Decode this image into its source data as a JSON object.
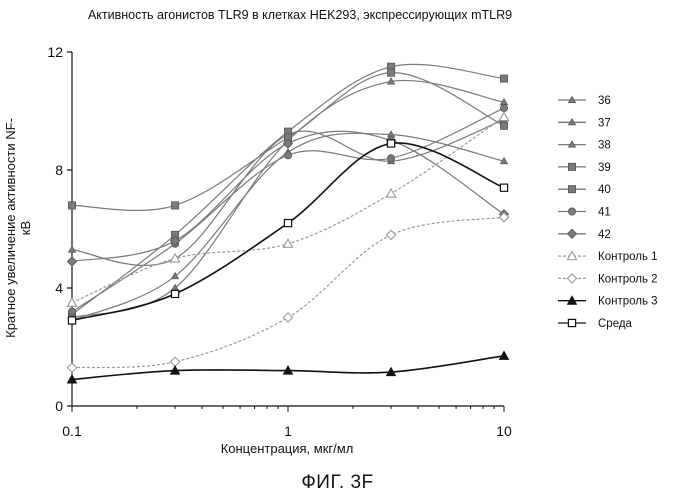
{
  "chart_data": {
    "type": "line",
    "title": "Активность агонистов TLR9 в клетках HEK293, экспрессирующих mTLR9",
    "xlabel": "Концентрация, мкг/мл",
    "ylabel": "Кратное увеличение активности NF-кВ",
    "caption": "ФИГ. 3F",
    "x_scale": "log",
    "xlim": [
      0.1,
      10
    ],
    "ylim": [
      0,
      12
    ],
    "x_ticks": [
      0.1,
      1,
      10
    ],
    "y_ticks": [
      0,
      4,
      8,
      12
    ],
    "x_tick_labels": [
      "0.1",
      "1",
      "10"
    ],
    "y_tick_labels": [
      "0",
      "4",
      "8",
      "12"
    ],
    "grid": false,
    "legend_position": "right",
    "x": [
      0.1,
      0.3,
      1,
      3,
      10
    ],
    "series": [
      {
        "name": "36",
        "values": [
          5.3,
          5.0,
          9.2,
          8.3,
          9.7
        ],
        "marker": "triangle-small",
        "color": "#7a7a7a"
      },
      {
        "name": "37",
        "values": [
          3.0,
          4.0,
          9.0,
          11.0,
          10.3
        ],
        "marker": "triangle-small",
        "color": "#7a7a7a"
      },
      {
        "name": "38",
        "values": [
          2.9,
          4.4,
          8.6,
          9.2,
          8.3
        ],
        "marker": "triangle-small",
        "color": "#7a7a7a"
      },
      {
        "name": "39",
        "values": [
          3.1,
          5.8,
          9.3,
          11.5,
          11.1
        ],
        "marker": "square",
        "color": "#7a7a7a"
      },
      {
        "name": "40",
        "values": [
          6.8,
          6.8,
          9.1,
          11.3,
          9.5
        ],
        "marker": "square",
        "color": "#7a7a7a"
      },
      {
        "name": "41",
        "values": [
          3.2,
          5.5,
          8.5,
          8.4,
          10.1
        ],
        "marker": "circle",
        "color": "#7a7a7a"
      },
      {
        "name": "42",
        "values": [
          4.9,
          5.6,
          8.9,
          9.0,
          6.5
        ],
        "marker": "diamond",
        "color": "#7a7a7a"
      },
      {
        "name": "Контроль 1",
        "values": [
          3.5,
          5.0,
          5.5,
          7.2,
          9.8
        ],
        "marker": "triangle-open",
        "color": "#999999"
      },
      {
        "name": "Контроль 2",
        "values": [
          1.3,
          1.5,
          3.0,
          5.8,
          6.4
        ],
        "marker": "diamond-open",
        "color": "#999999"
      },
      {
        "name": "Контроль 3",
        "values": [
          0.9,
          1.2,
          1.2,
          1.15,
          1.7
        ],
        "marker": "triangle-filled",
        "color": "#111111"
      },
      {
        "name": "Среда",
        "values": [
          2.9,
          3.8,
          6.2,
          8.9,
          7.4
        ],
        "marker": "square-open",
        "color": "#111111"
      }
    ]
  }
}
